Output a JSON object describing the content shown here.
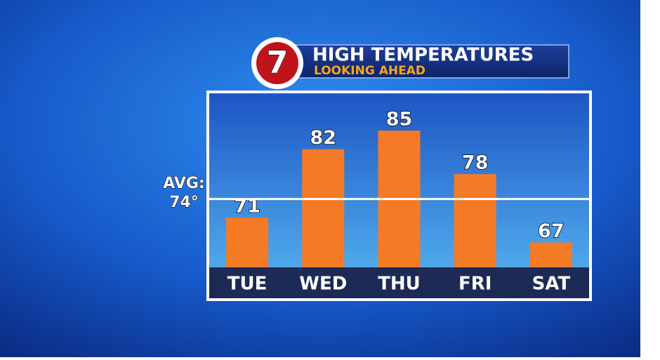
{
  "chart_data": {
    "type": "bar",
    "title": "HIGH TEMPERATURES",
    "subtitle": "LOOKING AHEAD",
    "logo": "7",
    "categories": [
      "TUE",
      "WED",
      "THU",
      "FRI",
      "SAT"
    ],
    "values": [
      71,
      82,
      85,
      78,
      67
    ],
    "color": "#f57a25",
    "ylim": [
      63,
      91
    ],
    "average": {
      "label": "AVG:",
      "value": 74,
      "value_label": "74°"
    }
  }
}
